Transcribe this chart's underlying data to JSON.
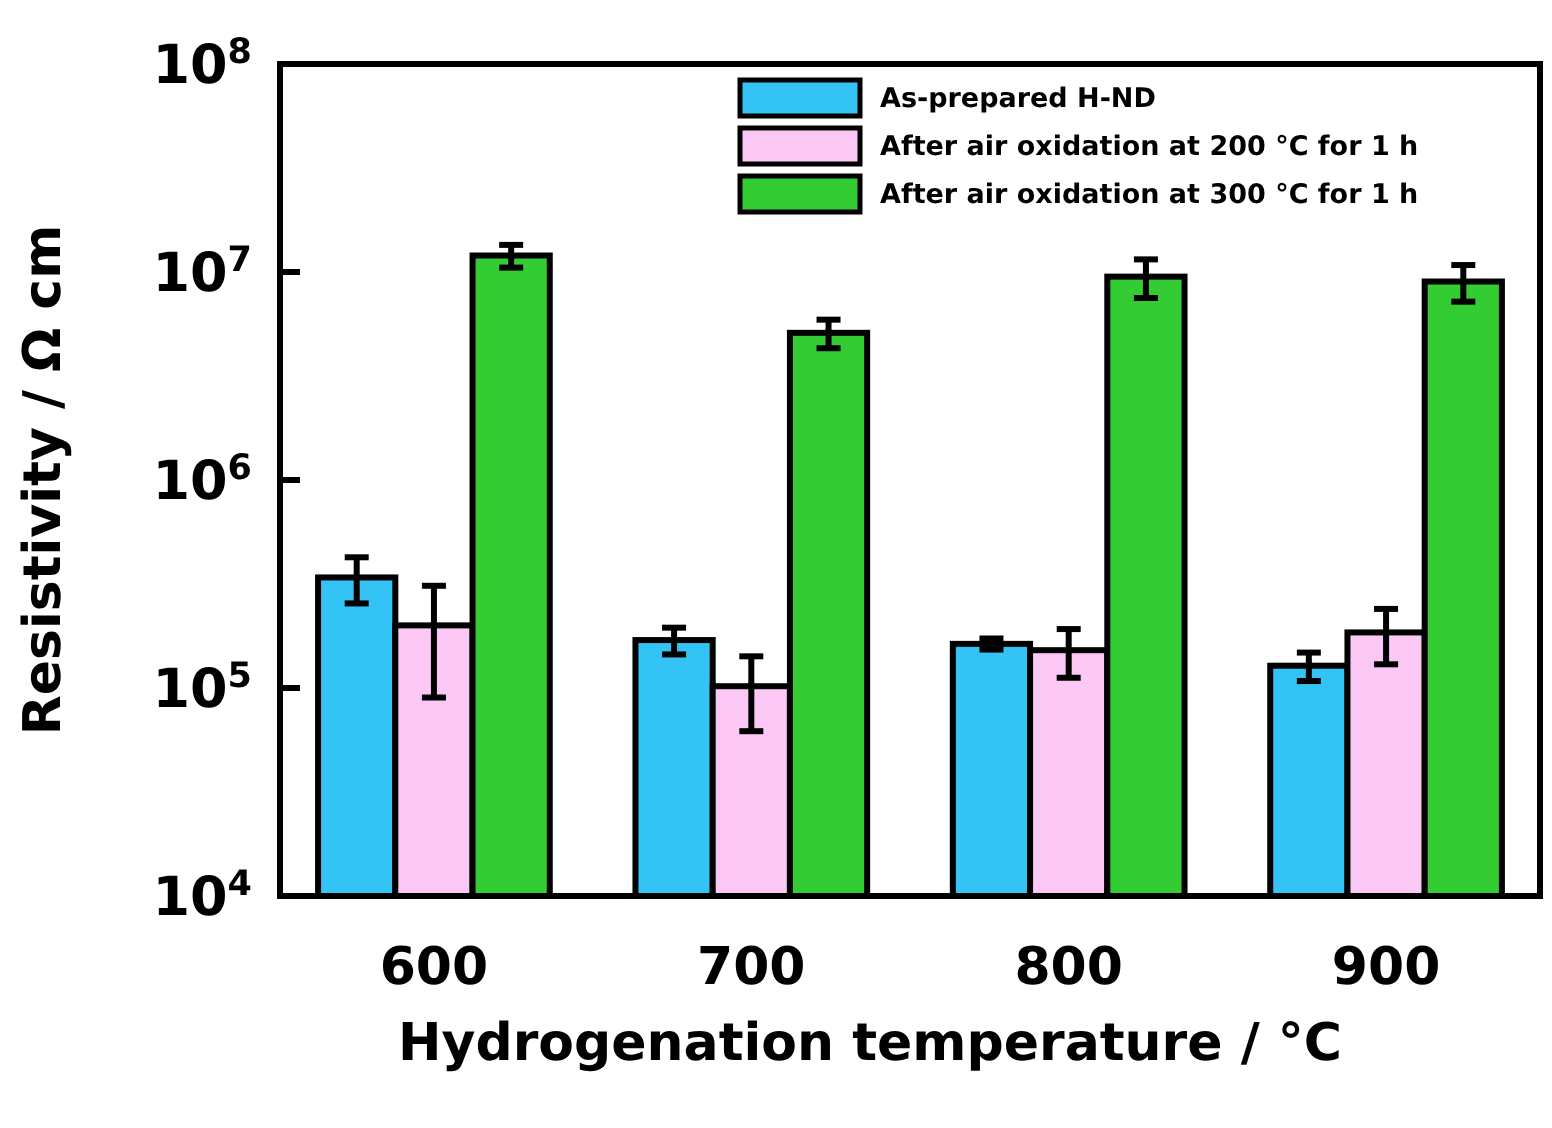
{
  "chart_data": {
    "type": "bar",
    "xlabel": "Hydrogenation temperature / °C",
    "ylabel": "Resistivity / Ω cm",
    "categories": [
      "600",
      "700",
      "800",
      "900"
    ],
    "series": [
      {
        "name": "As-prepared H-ND",
        "color": "#33c4f5",
        "values": [
          340000,
          170000,
          163000,
          128000
        ],
        "errors": [
          85000,
          25000,
          10000,
          20000
        ]
      },
      {
        "name": "After air oxidation at 200 °C for 1 h",
        "color": "#fbc8f6",
        "values": [
          200000,
          102000,
          152000,
          185000
        ],
        "errors": [
          110000,
          40000,
          40000,
          55000
        ]
      },
      {
        "name": "After air oxidation at 300 °C for 1 h",
        "color": "#33cc33",
        "values": [
          12000000,
          5100000,
          9500000,
          9000000
        ],
        "errors": [
          1500000,
          800000,
          2000000,
          1800000
        ]
      }
    ],
    "log": "y",
    "ylim": [
      10000,
      100000000
    ],
    "yticks": [
      {
        "value": 10000,
        "label": "10$^{4}$"
      },
      {
        "value": 100000,
        "label": "10$^{5}$"
      },
      {
        "value": 1000000,
        "label": "10$^{6}$"
      },
      {
        "value": 10000000,
        "label": "10$^{7}$"
      },
      {
        "value": 100000000,
        "label": "10$^{8}$"
      }
    ],
    "legend": "top right"
  }
}
